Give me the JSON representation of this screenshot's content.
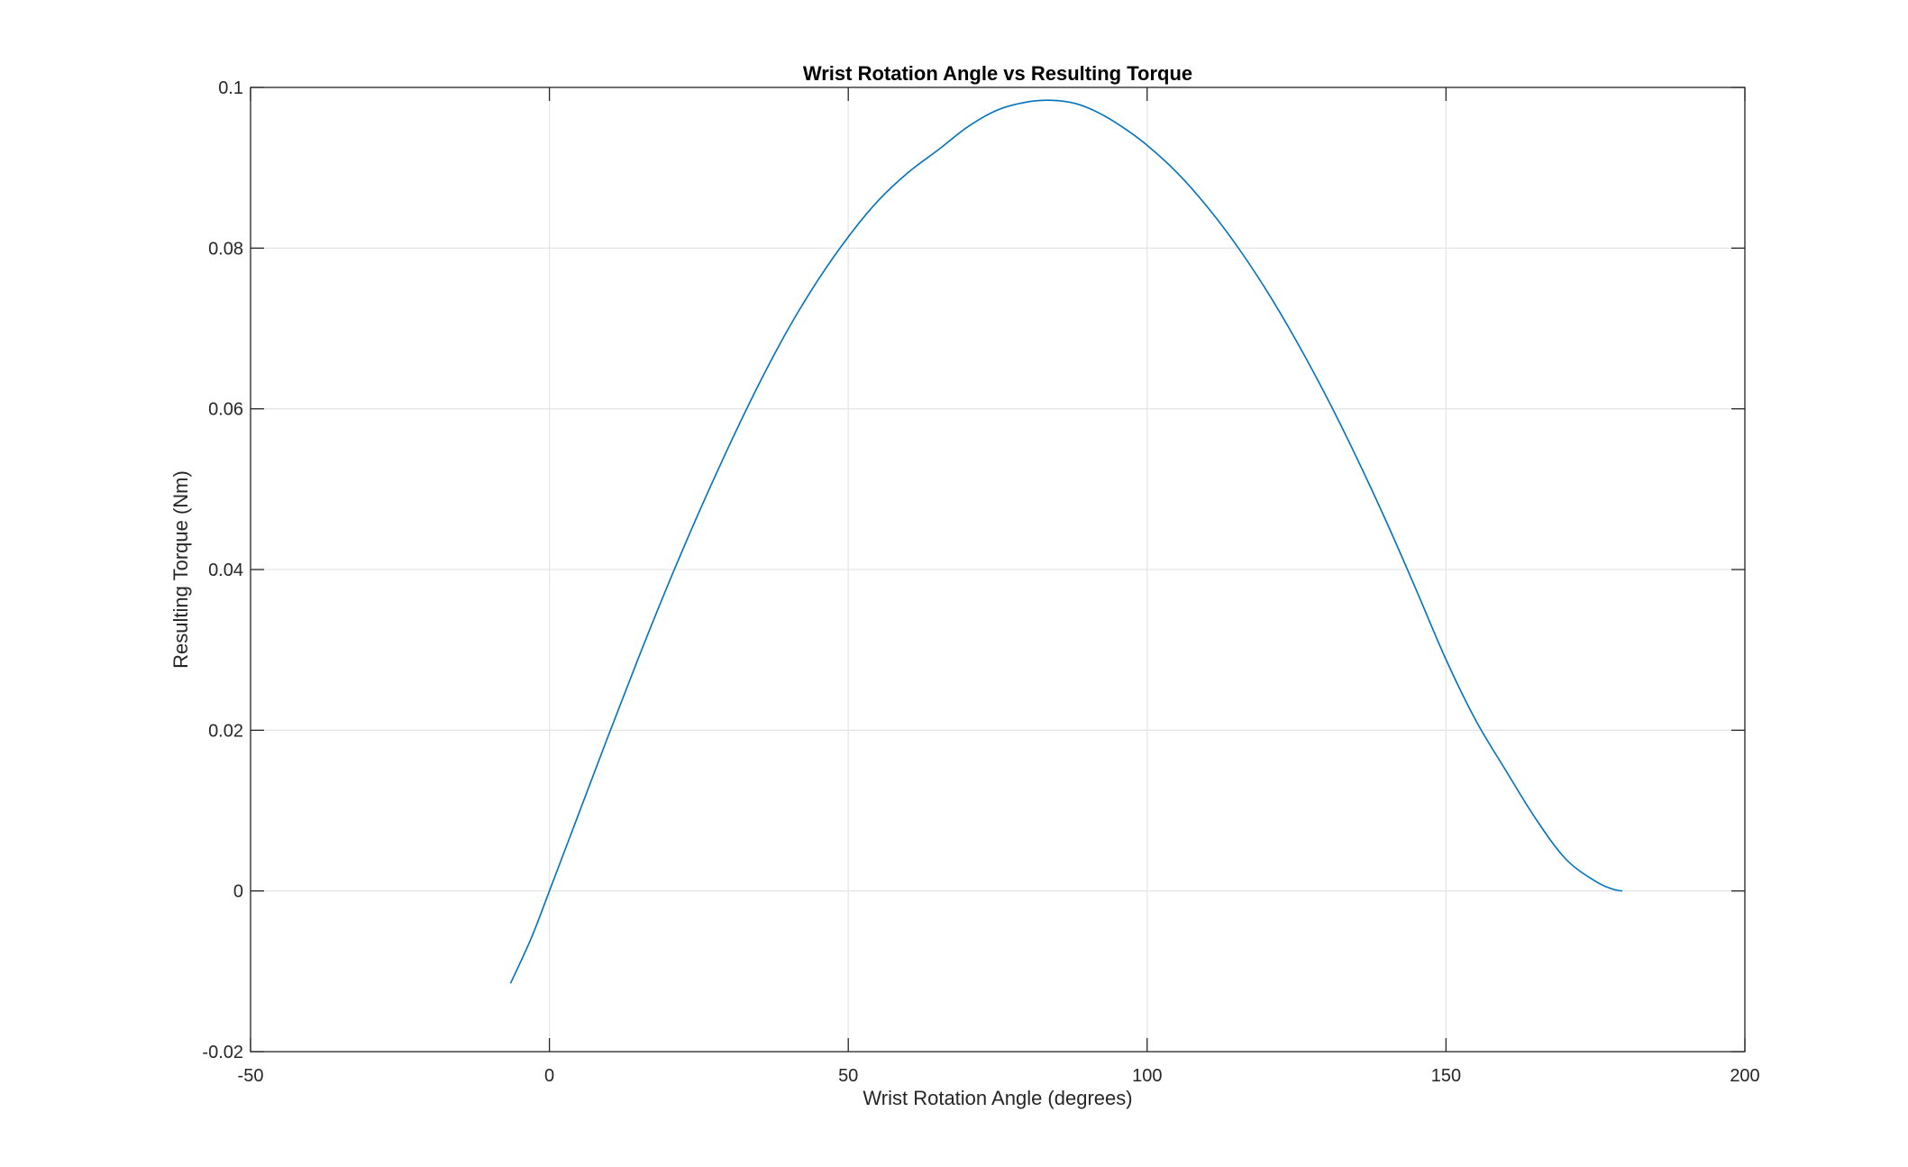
{
  "chart_data": {
    "type": "line",
    "title": "Wrist Rotation Angle vs Resulting Torque",
    "xlabel": "Wrist Rotation Angle (degrees)",
    "ylabel": "Resulting Torque (Nm)",
    "xlim": [
      -50,
      200
    ],
    "ylim": [
      -0.02,
      0.1
    ],
    "xticks": [
      -50,
      0,
      50,
      100,
      150,
      200
    ],
    "xtick_labels": [
      "-50",
      "0",
      "50",
      "100",
      "150",
      "200"
    ],
    "yticks": [
      -0.02,
      0,
      0.02,
      0.04,
      0.06,
      0.08,
      0.1
    ],
    "ytick_labels": [
      "-0.02",
      "0",
      "0.02",
      "0.04",
      "0.06",
      "0.08",
      "0.1"
    ],
    "grid": true,
    "series": [
      {
        "color": "#0072BD",
        "x": [
          -6.5,
          -3,
          0,
          5,
          10,
          15,
          20,
          25,
          30,
          35,
          40,
          45,
          50,
          55,
          60,
          65,
          70,
          75,
          80,
          84,
          88,
          92,
          96,
          100,
          105,
          110,
          115,
          120,
          125,
          130,
          135,
          140,
          145,
          150,
          155,
          160,
          165,
          170,
          175,
          178,
          179.5
        ],
        "y": [
          -0.0115,
          -0.0058,
          0.0,
          0.0098,
          0.0196,
          0.0292,
          0.0384,
          0.0471,
          0.0553,
          0.063,
          0.07,
          0.0761,
          0.0814,
          0.0859,
          0.0894,
          0.0922,
          0.0951,
          0.0972,
          0.0982,
          0.0984,
          0.098,
          0.0968,
          0.095,
          0.0928,
          0.0894,
          0.0852,
          0.0803,
          0.0747,
          0.0684,
          0.0615,
          0.054,
          0.046,
          0.0375,
          0.0288,
          0.0212,
          0.015,
          0.009,
          0.004,
          0.0012,
          0.0002,
          0.0
        ]
      }
    ]
  }
}
